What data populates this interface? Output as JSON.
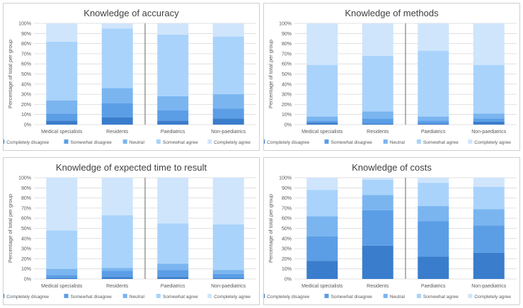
{
  "chart_data": [
    {
      "type": "bar",
      "stacked": true,
      "title": "Knowledge of accuracy",
      "ylabel": "Percentage of total per group",
      "categories": [
        "Medical specialists",
        "Residents",
        "Paediatrics",
        "Non-paediatrics"
      ],
      "ylim": [
        0,
        100
      ],
      "yticks": [
        "0%",
        "10%",
        "20%",
        "30%",
        "40%",
        "50%",
        "60%",
        "70%",
        "80%",
        "90%",
        "100%"
      ],
      "series": [
        {
          "name": "Completely disagree",
          "values": [
            4,
            7,
            4,
            6
          ]
        },
        {
          "name": "Somewhat disagree",
          "values": [
            7,
            14,
            10,
            10
          ]
        },
        {
          "name": "Neutral",
          "values": [
            13,
            15,
            14,
            14
          ]
        },
        {
          "name": "Somewhat agree",
          "values": [
            58,
            59,
            61,
            57
          ]
        },
        {
          "name": "Completely agree",
          "values": [
            18,
            5,
            11,
            13
          ]
        }
      ],
      "legend": "bottom"
    },
    {
      "type": "bar",
      "stacked": true,
      "title": "Knowledge of methods",
      "ylabel": "Percentage of total per group",
      "categories": [
        "Medical specialists",
        "Residents",
        "Paediatrics",
        "Non-paediatrics"
      ],
      "ylim": [
        0,
        100
      ],
      "yticks": [
        "0%",
        "10%",
        "20%",
        "30%",
        "40%",
        "50%",
        "60%",
        "70%",
        "80%",
        "90%",
        "100%"
      ],
      "series": [
        {
          "name": "Completely disagree",
          "values": [
            2,
            1,
            1,
            3
          ]
        },
        {
          "name": "Somewhat disagree",
          "values": [
            2,
            5,
            3,
            3
          ]
        },
        {
          "name": "Neutral",
          "values": [
            4,
            7,
            4,
            5
          ]
        },
        {
          "name": "Somewhat agree",
          "values": [
            51,
            55,
            65,
            48
          ]
        },
        {
          "name": "Completely agree",
          "values": [
            41,
            32,
            27,
            41
          ]
        }
      ],
      "legend": "bottom"
    },
    {
      "type": "bar",
      "stacked": true,
      "title": "Knowledge of expected time to result",
      "ylabel": "Percentage of total per group",
      "categories": [
        "Medical specialists",
        "Residents",
        "Paediatrics",
        "Non-paediatrics"
      ],
      "ylim": [
        0,
        100
      ],
      "yticks": [
        "0%",
        "10%",
        "20%",
        "30%",
        "40%",
        "50%",
        "60%",
        "70%",
        "80%",
        "90%",
        "100%"
      ],
      "series": [
        {
          "name": "Completely disagree",
          "values": [
            1,
            2,
            2,
            1
          ]
        },
        {
          "name": "Somewhat disagree",
          "values": [
            3,
            6,
            7,
            4
          ]
        },
        {
          "name": "Neutral",
          "values": [
            6,
            3,
            6,
            4
          ]
        },
        {
          "name": "Somewhat agree",
          "values": [
            38,
            52,
            40,
            45
          ]
        },
        {
          "name": "Completely agree",
          "values": [
            52,
            37,
            45,
            46
          ]
        }
      ],
      "legend": "bottom"
    },
    {
      "type": "bar",
      "stacked": true,
      "title": "Knowledge of costs",
      "ylabel": "Percentage of total per group",
      "categories": [
        "Medical specialists",
        "Residents",
        "Paediatrics",
        "Non-paediatrics"
      ],
      "ylim": [
        0,
        100
      ],
      "yticks": [
        "0%",
        "10%",
        "20%",
        "30%",
        "40%",
        "50%",
        "60%",
        "70%",
        "80%",
        "90%",
        "100%"
      ],
      "series": [
        {
          "name": "Completely disagree",
          "values": [
            18,
            33,
            22,
            26
          ]
        },
        {
          "name": "Somewhat disagree",
          "values": [
            24,
            35,
            35,
            27
          ]
        },
        {
          "name": "Neutral",
          "values": [
            20,
            15,
            15,
            16
          ]
        },
        {
          "name": "Somewhat agree",
          "values": [
            26,
            15,
            23,
            22
          ]
        },
        {
          "name": "Completely agree",
          "values": [
            12,
            2,
            5,
            9
          ]
        }
      ],
      "legend": "bottom"
    }
  ],
  "colors": [
    "#3a7dcc",
    "#5b9ee6",
    "#7ab5f0",
    "#a9d3fb",
    "#cfe5fc"
  ],
  "gridline_color": "#d9d9d9",
  "divider_color": "#808080",
  "text_color": "#595959"
}
